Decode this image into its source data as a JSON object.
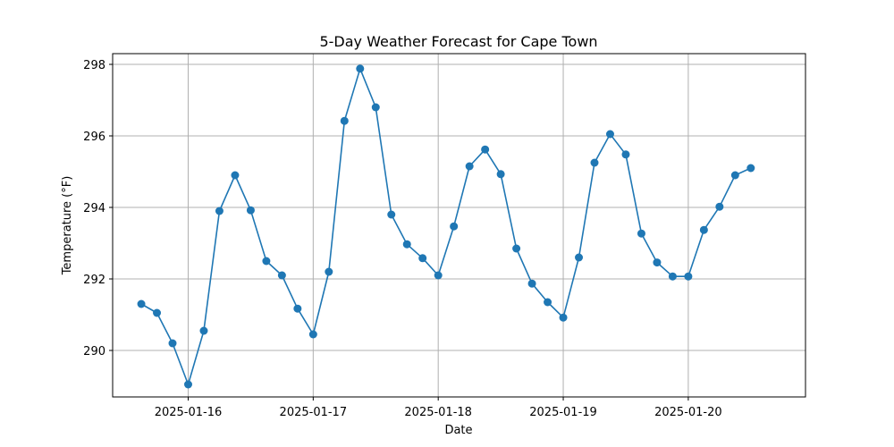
{
  "chart_data": {
    "type": "line",
    "title": "5-Day Weather Forecast for Cape Town",
    "xlabel": "Date",
    "ylabel": "Temperature (°F)",
    "x_ticks": [
      "2025-01-16",
      "2025-01-17",
      "2025-01-18",
      "2025-01-19",
      "2025-01-20"
    ],
    "y_ticks": [
      "290",
      "292",
      "294",
      "296",
      "298"
    ],
    "ylim": [
      288.7,
      298.3
    ],
    "xlim": [
      "2025-01-15 09:30",
      "2025-01-20 22:30"
    ],
    "grid": true,
    "color": "#1f77b4",
    "series": [
      {
        "x": [
          "2025-01-15 15:00",
          "2025-01-15 18:00",
          "2025-01-15 21:00",
          "2025-01-16 00:00",
          "2025-01-16 03:00",
          "2025-01-16 06:00",
          "2025-01-16 09:00",
          "2025-01-16 12:00",
          "2025-01-16 15:00",
          "2025-01-16 18:00",
          "2025-01-16 21:00",
          "2025-01-17 00:00",
          "2025-01-17 03:00",
          "2025-01-17 06:00",
          "2025-01-17 09:00",
          "2025-01-17 12:00",
          "2025-01-17 15:00",
          "2025-01-17 18:00",
          "2025-01-17 21:00",
          "2025-01-18 00:00",
          "2025-01-18 03:00",
          "2025-01-18 06:00",
          "2025-01-18 09:00",
          "2025-01-18 12:00",
          "2025-01-18 15:00",
          "2025-01-18 18:00",
          "2025-01-18 21:00",
          "2025-01-19 00:00",
          "2025-01-19 03:00",
          "2025-01-19 06:00",
          "2025-01-19 09:00",
          "2025-01-19 12:00",
          "2025-01-19 15:00",
          "2025-01-19 18:00",
          "2025-01-19 21:00",
          "2025-01-20 00:00",
          "2025-01-20 03:00",
          "2025-01-20 06:00",
          "2025-01-20 09:00",
          "2025-01-20 12:00"
        ],
        "values": [
          291.3,
          291.05,
          290.2,
          289.05,
          290.55,
          293.9,
          294.9,
          293.92,
          292.5,
          292.1,
          291.17,
          290.45,
          292.2,
          296.42,
          297.88,
          296.8,
          293.8,
          292.97,
          292.58,
          292.1,
          293.47,
          295.15,
          295.62,
          294.93,
          292.85,
          291.87,
          291.35,
          290.92,
          292.6,
          295.25,
          296.05,
          295.48,
          293.27,
          292.46,
          292.07,
          292.07,
          293.37,
          294.02,
          294.9,
          295.1
        ]
      }
    ]
  }
}
